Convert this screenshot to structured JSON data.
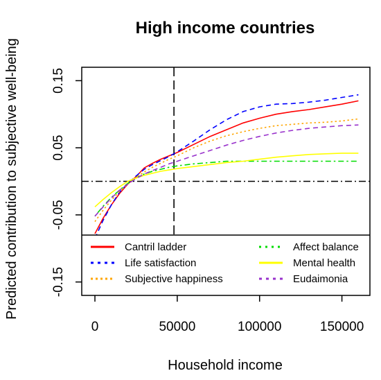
{
  "chart_data": {
    "type": "line",
    "title": "High income countries",
    "xlabel": "Household income",
    "ylabel": "Predicted contribution to subjective well-being",
    "xlim": [
      -8000,
      167000
    ],
    "ylim": [
      -0.17,
      0.17
    ],
    "x_ticks": [
      0,
      50000,
      100000,
      150000
    ],
    "x_tick_labels": [
      "0",
      "50000",
      "100000",
      "150000"
    ],
    "y_ticks": [
      -0.15,
      -0.05,
      0.05,
      0.15
    ],
    "y_tick_labels": [
      "-0.15",
      "-0.05",
      "0.05",
      "0.15"
    ],
    "reference_lines": {
      "vertical_x": 48000,
      "horizontal_y": 0
    },
    "legend_position": "bottom",
    "series": [
      {
        "name": "Cantril ladder",
        "color": "#ff0000",
        "dash": "solid",
        "points": [
          [
            0,
            -0.078
          ],
          [
            5000,
            -0.055
          ],
          [
            10000,
            -0.035
          ],
          [
            15000,
            -0.018
          ],
          [
            20000,
            -0.004
          ],
          [
            25000,
            0.007
          ],
          [
            30000,
            0.02
          ],
          [
            35000,
            0.027
          ],
          [
            40000,
            0.033
          ],
          [
            45000,
            0.038
          ],
          [
            50000,
            0.043
          ],
          [
            60000,
            0.055
          ],
          [
            70000,
            0.067
          ],
          [
            80000,
            0.077
          ],
          [
            90000,
            0.087
          ],
          [
            100000,
            0.094
          ],
          [
            110000,
            0.1
          ],
          [
            120000,
            0.104
          ],
          [
            130000,
            0.107
          ],
          [
            140000,
            0.111
          ],
          [
            150000,
            0.115
          ],
          [
            160000,
            0.12
          ]
        ]
      },
      {
        "name": "Life satisfaction",
        "color": "#0000ff",
        "dash": "dashed",
        "points": [
          [
            0,
            -0.085
          ],
          [
            5000,
            -0.058
          ],
          [
            10000,
            -0.035
          ],
          [
            15000,
            -0.016
          ],
          [
            20000,
            -0.003
          ],
          [
            25000,
            0.008
          ],
          [
            30000,
            0.018
          ],
          [
            35000,
            0.025
          ],
          [
            40000,
            0.031
          ],
          [
            45000,
            0.037
          ],
          [
            50000,
            0.044
          ],
          [
            60000,
            0.06
          ],
          [
            70000,
            0.077
          ],
          [
            80000,
            0.092
          ],
          [
            90000,
            0.104
          ],
          [
            100000,
            0.111
          ],
          [
            110000,
            0.115
          ],
          [
            120000,
            0.116
          ],
          [
            130000,
            0.118
          ],
          [
            140000,
            0.121
          ],
          [
            150000,
            0.125
          ],
          [
            160000,
            0.129
          ]
        ]
      },
      {
        "name": "Subjective happiness",
        "color": "#ffa500",
        "dash": "dotted",
        "points": [
          [
            0,
            -0.06
          ],
          [
            5000,
            -0.043
          ],
          [
            10000,
            -0.028
          ],
          [
            15000,
            -0.015
          ],
          [
            20000,
            -0.004
          ],
          [
            25000,
            0.006
          ],
          [
            30000,
            0.014
          ],
          [
            35000,
            0.021
          ],
          [
            40000,
            0.027
          ],
          [
            45000,
            0.033
          ],
          [
            50000,
            0.038
          ],
          [
            60000,
            0.05
          ],
          [
            70000,
            0.06
          ],
          [
            80000,
            0.068
          ],
          [
            90000,
            0.074
          ],
          [
            100000,
            0.079
          ],
          [
            110000,
            0.083
          ],
          [
            120000,
            0.085
          ],
          [
            130000,
            0.087
          ],
          [
            140000,
            0.088
          ],
          [
            150000,
            0.09
          ],
          [
            160000,
            0.093
          ]
        ]
      },
      {
        "name": "Affect balance",
        "color": "#00dd00",
        "dash": "dotdash",
        "points": [
          [
            0,
            -0.052
          ],
          [
            5000,
            -0.037
          ],
          [
            10000,
            -0.024
          ],
          [
            15000,
            -0.013
          ],
          [
            20000,
            -0.003
          ],
          [
            25000,
            0.005
          ],
          [
            30000,
            0.011
          ],
          [
            35000,
            0.015
          ],
          [
            40000,
            0.018
          ],
          [
            45000,
            0.021
          ],
          [
            50000,
            0.023
          ],
          [
            60000,
            0.026
          ],
          [
            70000,
            0.028
          ],
          [
            80000,
            0.03
          ],
          [
            90000,
            0.03
          ],
          [
            100000,
            0.03
          ],
          [
            110000,
            0.03
          ],
          [
            120000,
            0.03
          ],
          [
            130000,
            0.03
          ],
          [
            140000,
            0.03
          ],
          [
            150000,
            0.03
          ],
          [
            160000,
            0.03
          ]
        ]
      },
      {
        "name": "Mental health",
        "color": "#ffff00",
        "dash": "solid",
        "points": [
          [
            0,
            -0.038
          ],
          [
            5000,
            -0.027
          ],
          [
            10000,
            -0.017
          ],
          [
            15000,
            -0.008
          ],
          [
            20000,
            0.0
          ],
          [
            25000,
            0.005
          ],
          [
            30000,
            0.009
          ],
          [
            35000,
            0.012
          ],
          [
            40000,
            0.015
          ],
          [
            45000,
            0.017
          ],
          [
            50000,
            0.019
          ],
          [
            60000,
            0.022
          ],
          [
            70000,
            0.025
          ],
          [
            80000,
            0.028
          ],
          [
            90000,
            0.03
          ],
          [
            100000,
            0.033
          ],
          [
            110000,
            0.036
          ],
          [
            120000,
            0.038
          ],
          [
            130000,
            0.04
          ],
          [
            140000,
            0.041
          ],
          [
            150000,
            0.042
          ],
          [
            160000,
            0.042
          ]
        ]
      },
      {
        "name": "Eudaimonia",
        "color": "#9932cc",
        "dash": "dashed",
        "points": [
          [
            0,
            -0.052
          ],
          [
            5000,
            -0.038
          ],
          [
            10000,
            -0.025
          ],
          [
            15000,
            -0.013
          ],
          [
            20000,
            -0.004
          ],
          [
            25000,
            0.004
          ],
          [
            30000,
            0.011
          ],
          [
            35000,
            0.016
          ],
          [
            40000,
            0.021
          ],
          [
            45000,
            0.026
          ],
          [
            50000,
            0.03
          ],
          [
            60000,
            0.038
          ],
          [
            70000,
            0.046
          ],
          [
            80000,
            0.054
          ],
          [
            90000,
            0.061
          ],
          [
            100000,
            0.067
          ],
          [
            110000,
            0.072
          ],
          [
            120000,
            0.076
          ],
          [
            130000,
            0.079
          ],
          [
            140000,
            0.081
          ],
          [
            150000,
            0.083
          ],
          [
            160000,
            0.084
          ]
        ]
      }
    ]
  }
}
